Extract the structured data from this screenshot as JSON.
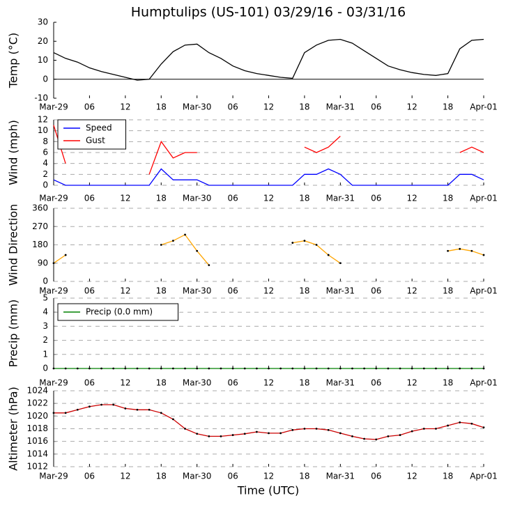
{
  "chart_data": [
    {
      "type": "line",
      "title": "Humptulips (US-101) 03/29/16 - 03/31/16",
      "ylabel": "Temp (°C)",
      "x": [
        0,
        2,
        4,
        6,
        8,
        10,
        12,
        14,
        16,
        18,
        20,
        22,
        24,
        26,
        28,
        30,
        32,
        34,
        36,
        38,
        40,
        42,
        44,
        46,
        48,
        50,
        52,
        54,
        56,
        58,
        60,
        62,
        64,
        66,
        68,
        70,
        72
      ],
      "series": [
        {
          "name": "Temp",
          "color": "#000000",
          "values": [
            14,
            11,
            9,
            6,
            4,
            2.5,
            1,
            -0.5,
            0,
            8,
            14.5,
            18,
            18.5,
            14,
            11,
            7,
            4.5,
            3,
            2,
            1,
            0.5,
            14,
            18,
            20.5,
            21,
            19,
            15,
            11,
            7,
            5,
            3.5,
            2.5,
            2,
            3,
            16,
            20.5,
            21
          ]
        }
      ],
      "xlim": [
        0,
        72
      ],
      "xticks": [
        {
          "value": 0,
          "label": "Mar-29"
        },
        {
          "value": 6,
          "label": "06"
        },
        12,
        18,
        {
          "value": 24,
          "label": "Mar-30"
        },
        {
          "value": 30,
          "label": "06"
        },
        {
          "value": 36,
          "label": "12"
        },
        {
          "value": 42,
          "label": "18"
        },
        {
          "value": 48,
          "label": "Mar-31"
        },
        {
          "value": 54,
          "label": "06"
        },
        {
          "value": 60,
          "label": "12"
        },
        {
          "value": 66,
          "label": "18"
        },
        {
          "value": 72,
          "label": "Apr-01"
        }
      ],
      "ylim": [
        -10,
        30
      ],
      "yticks": [
        -10,
        0,
        10,
        20,
        30
      ],
      "grid": false,
      "zero_line": true,
      "markers": false
    },
    {
      "type": "line",
      "ylabel": "Wind (mph)",
      "x": [
        0,
        2,
        4,
        6,
        8,
        10,
        12,
        14,
        16,
        18,
        20,
        22,
        24,
        26,
        28,
        30,
        32,
        34,
        36,
        38,
        40,
        42,
        44,
        46,
        48,
        50,
        52,
        54,
        56,
        58,
        60,
        62,
        64,
        66,
        68,
        70,
        72
      ],
      "series": [
        {
          "name": "Speed",
          "color": "#0000ff",
          "values": [
            1,
            0,
            0,
            0,
            0,
            0,
            0,
            0,
            0,
            3,
            1,
            1,
            1,
            0,
            0,
            0,
            0,
            0,
            0,
            0,
            0,
            2,
            2,
            3,
            2,
            0,
            0,
            0,
            0,
            0,
            0,
            0,
            0,
            0,
            2,
            2,
            1
          ]
        },
        {
          "name": "Gust",
          "color": "#ff0000",
          "values": [
            11,
            4,
            null,
            null,
            null,
            null,
            null,
            null,
            2,
            8,
            5,
            6,
            6,
            null,
            null,
            null,
            null,
            null,
            null,
            null,
            null,
            7,
            6,
            7,
            9,
            null,
            null,
            null,
            null,
            null,
            null,
            null,
            null,
            null,
            6,
            7,
            6
          ]
        }
      ],
      "xlim": [
        0,
        72
      ],
      "xticks": [
        {
          "value": 0,
          "label": "Mar-29"
        },
        {
          "value": 6,
          "label": "06"
        },
        12,
        18,
        {
          "value": 24,
          "label": "Mar-30"
        },
        {
          "value": 30,
          "label": "06"
        },
        {
          "value": 36,
          "label": "12"
        },
        {
          "value": 42,
          "label": "18"
        },
        {
          "value": 48,
          "label": "Mar-31"
        },
        {
          "value": 54,
          "label": "06"
        },
        {
          "value": 60,
          "label": "12"
        },
        {
          "value": 66,
          "label": "18"
        },
        {
          "value": 72,
          "label": "Apr-01"
        }
      ],
      "ylim": [
        0,
        12
      ],
      "yticks": [
        0,
        2,
        4,
        6,
        8,
        10,
        12
      ],
      "grid": true,
      "legend": "upper left",
      "markers": false
    },
    {
      "type": "line",
      "ylabel": "Wind Direction",
      "x": [
        0,
        2,
        4,
        6,
        8,
        10,
        12,
        14,
        16,
        18,
        20,
        22,
        24,
        26,
        28,
        30,
        32,
        34,
        36,
        38,
        40,
        42,
        44,
        46,
        48,
        50,
        52,
        54,
        56,
        58,
        60,
        62,
        64,
        66,
        68,
        70,
        72
      ],
      "series": [
        {
          "name": "Direction",
          "color": "#ffa500",
          "values": [
            90,
            130,
            null,
            null,
            null,
            null,
            null,
            null,
            null,
            180,
            200,
            230,
            150,
            80,
            null,
            null,
            null,
            null,
            null,
            null,
            190,
            200,
            180,
            130,
            90,
            null,
            null,
            null,
            null,
            null,
            null,
            null,
            null,
            150,
            160,
            150,
            130
          ]
        }
      ],
      "xlim": [
        0,
        72
      ],
      "xticks": [
        {
          "value": 0,
          "label": "Mar-29"
        },
        {
          "value": 6,
          "label": "06"
        },
        12,
        18,
        {
          "value": 24,
          "label": "Mar-30"
        },
        {
          "value": 30,
          "label": "06"
        },
        {
          "value": 36,
          "label": "12"
        },
        {
          "value": 42,
          "label": "18"
        },
        {
          "value": 48,
          "label": "Mar-31"
        },
        {
          "value": 54,
          "label": "06"
        },
        {
          "value": 60,
          "label": "12"
        },
        {
          "value": 66,
          "label": "18"
        },
        {
          "value": 72,
          "label": "Apr-01"
        }
      ],
      "ylim": [
        0,
        360
      ],
      "yticks": [
        0,
        90,
        180,
        270,
        360
      ],
      "grid": true,
      "markers": true,
      "marker_color": "#000000"
    },
    {
      "type": "line",
      "ylabel": "Precip (mm)",
      "x": [
        0,
        2,
        4,
        6,
        8,
        10,
        12,
        14,
        16,
        18,
        20,
        22,
        24,
        26,
        28,
        30,
        32,
        34,
        36,
        38,
        40,
        42,
        44,
        46,
        48,
        50,
        52,
        54,
        56,
        58,
        60,
        62,
        64,
        66,
        68,
        70,
        72
      ],
      "series": [
        {
          "name": "Precip (0.0 mm)",
          "color": "#008000",
          "values": [
            0,
            0,
            0,
            0,
            0,
            0,
            0,
            0,
            0,
            0,
            0,
            0,
            0,
            0,
            0,
            0,
            0,
            0,
            0,
            0,
            0,
            0,
            0,
            0,
            0,
            0,
            0,
            0,
            0,
            0,
            0,
            0,
            0,
            0,
            0,
            0,
            0
          ]
        }
      ],
      "xlim": [
        0,
        72
      ],
      "xticks": [
        {
          "value": 0,
          "label": "Mar-29"
        },
        {
          "value": 6,
          "label": "06"
        },
        12,
        18,
        {
          "value": 24,
          "label": "Mar-30"
        },
        {
          "value": 30,
          "label": "06"
        },
        {
          "value": 36,
          "label": "12"
        },
        {
          "value": 42,
          "label": "18"
        },
        {
          "value": 48,
          "label": "Mar-31"
        },
        {
          "value": 54,
          "label": "06"
        },
        {
          "value": 60,
          "label": "12"
        },
        {
          "value": 66,
          "label": "18"
        },
        {
          "value": 72,
          "label": "Apr-01"
        }
      ],
      "ylim": [
        0,
        5
      ],
      "yticks": [
        0,
        1,
        2,
        3,
        4,
        5
      ],
      "grid": true,
      "legend": "upper left",
      "markers": true,
      "marker_color": "#000000"
    },
    {
      "type": "line",
      "ylabel": "Altimeter (hPa)",
      "xlabel": "Time (UTC)",
      "x": [
        0,
        2,
        4,
        6,
        8,
        10,
        12,
        14,
        16,
        18,
        20,
        22,
        24,
        26,
        28,
        30,
        32,
        34,
        36,
        38,
        40,
        42,
        44,
        46,
        48,
        50,
        52,
        54,
        56,
        58,
        60,
        62,
        64,
        66,
        68,
        70,
        72
      ],
      "series": [
        {
          "name": "Altimeter",
          "color": "#cc0000",
          "values": [
            1020.5,
            1020.5,
            1021,
            1021.5,
            1021.8,
            1021.8,
            1021.2,
            1021,
            1021,
            1020.5,
            1019.5,
            1018,
            1017.2,
            1016.8,
            1016.8,
            1017,
            1017.2,
            1017.5,
            1017.3,
            1017.3,
            1017.8,
            1018,
            1018,
            1017.8,
            1017.3,
            1016.8,
            1016.4,
            1016.3,
            1016.8,
            1017,
            1017.6,
            1018,
            1018,
            1018.5,
            1019,
            1018.8,
            1018.2
          ]
        }
      ],
      "xlim": [
        0,
        72
      ],
      "xticks": [
        {
          "value": 0,
          "label": "Mar-29"
        },
        {
          "value": 6,
          "label": "06"
        },
        12,
        18,
        {
          "value": 24,
          "label": "Mar-30"
        },
        {
          "value": 30,
          "label": "06"
        },
        {
          "value": 36,
          "label": "12"
        },
        {
          "value": 42,
          "label": "18"
        },
        {
          "value": 48,
          "label": "Mar-31"
        },
        {
          "value": 54,
          "label": "06"
        },
        {
          "value": 60,
          "label": "12"
        },
        {
          "value": 66,
          "label": "18"
        },
        {
          "value": 72,
          "label": "Apr-01"
        }
      ],
      "ylim": [
        1012,
        1024
      ],
      "yticks": [
        1012,
        1014,
        1016,
        1018,
        1020,
        1022,
        1024
      ],
      "grid": true,
      "markers": true,
      "marker_color": "#000000"
    }
  ]
}
